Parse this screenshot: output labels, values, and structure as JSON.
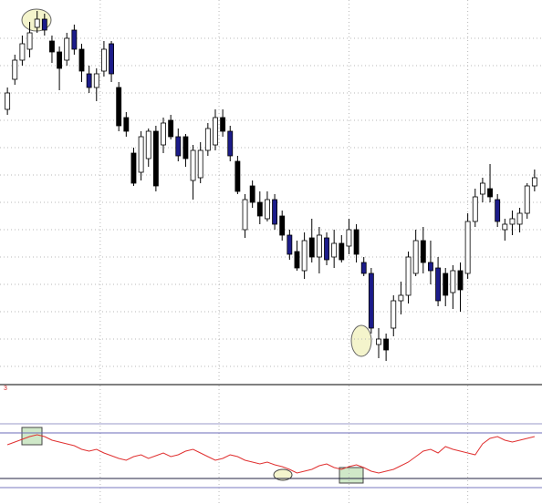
{
  "chart_data": [
    {
      "type": "candlestick",
      "xlim": [
        -1,
        72
      ],
      "xticks": [
        12.5,
        28.5,
        46,
        62
      ],
      "ylim": [
        0,
        140
      ],
      "yticks": [
        6,
        16,
        26,
        36,
        46,
        56,
        66,
        76,
        86,
        96,
        106,
        116,
        126
      ],
      "grid": true,
      "open": [
        100,
        111,
        118,
        122,
        130,
        133,
        125,
        121,
        118,
        129,
        122,
        113,
        108,
        114,
        124,
        108,
        97,
        84,
        77,
        82,
        92,
        87,
        96,
        90,
        90,
        74,
        75,
        85,
        87,
        97,
        92,
        81,
        56,
        72,
        66,
        60,
        67,
        61,
        54,
        48,
        41,
        53,
        46,
        53,
        46,
        51,
        50,
        56,
        44,
        40,
        14,
        16,
        20,
        30,
        32,
        40,
        52,
        44,
        42,
        40,
        33,
        41,
        40,
        59,
        69,
        71,
        67,
        56,
        58,
        58,
        62,
        72
      ],
      "high": [
        108,
        120,
        127,
        132,
        136,
        135,
        127,
        123,
        128,
        131,
        124,
        116,
        115,
        125,
        125,
        110,
        99,
        86,
        92,
        93,
        94,
        97,
        98,
        93,
        91,
        87,
        88,
        95,
        100,
        100,
        94,
        83,
        69,
        74,
        70,
        70,
        69,
        63,
        56,
        52,
        55,
        60,
        57,
        55,
        56,
        54,
        60,
        58,
        46,
        42,
        20,
        18,
        32,
        37,
        48,
        56,
        57,
        52,
        46,
        42,
        43,
        44,
        62,
        71,
        75,
        80,
        69,
        60,
        63,
        64,
        73,
        78
      ],
      "low": [
        98,
        109,
        116,
        119,
        128,
        127,
        117,
        107,
        116,
        120,
        110,
        106,
        103,
        112,
        110,
        92,
        90,
        72,
        74,
        79,
        70,
        84,
        89,
        81,
        79,
        67,
        73,
        83,
        85,
        90,
        81,
        69,
        53,
        64,
        58,
        59,
        56,
        52,
        45,
        41,
        38,
        44,
        40,
        43,
        42,
        44,
        47,
        44,
        39,
        18,
        9,
        8,
        17,
        25,
        29,
        39,
        40,
        36,
        28,
        28,
        27,
        26,
        38,
        57,
        66,
        66,
        57,
        52,
        54,
        55,
        60,
        70
      ],
      "close": [
        106,
        118,
        124,
        128,
        133,
        129,
        121,
        115,
        126,
        122,
        114,
        108,
        113,
        122,
        113,
        94,
        92,
        73,
        90,
        92,
        72,
        95,
        90,
        83,
        82,
        85,
        85,
        93,
        97,
        92,
        83,
        70,
        67,
        66,
        61,
        67,
        58,
        54,
        47,
        42,
        52,
        46,
        54,
        45,
        51,
        45,
        56,
        47,
        40,
        20,
        16,
        12,
        30,
        32,
        46,
        52,
        44,
        41,
        30,
        32,
        41,
        34,
        59,
        68,
        73,
        68,
        59,
        58,
        60,
        62,
        72,
        75
      ],
      "colors": [
        "#ffffff",
        "#ffffff",
        "#ffffff",
        "#ffffff",
        "#ffffff",
        "#1c1c8a",
        "#000000",
        "#000000",
        "#ffffff",
        "#1c1c8a",
        "#000000",
        "#1c1c8a",
        "#ffffff",
        "#ffffff",
        "#1c1c8a",
        "#000000",
        "#000000",
        "#000000",
        "#ffffff",
        "#ffffff",
        "#000000",
        "#ffffff",
        "#000000",
        "#1c1c8a",
        "#000000",
        "#ffffff",
        "#ffffff",
        "#ffffff",
        "#ffffff",
        "#000000",
        "#1c1c8a",
        "#000000",
        "#ffffff",
        "#000000",
        "#000000",
        "#ffffff",
        "#1c1c8a",
        "#000000",
        "#1c1c8a",
        "#000000",
        "#ffffff",
        "#000000",
        "#ffffff",
        "#1c1c8a",
        "#ffffff",
        "#000000",
        "#ffffff",
        "#000000",
        "#1c1c8a",
        "#1c1c8a",
        "#ffffff",
        "#000000",
        "#ffffff",
        "#ffffff",
        "#ffffff",
        "#ffffff",
        "#000000",
        "#1c1c8a",
        "#1c1c8a",
        "#000000",
        "#ffffff",
        "#000000",
        "#ffffff",
        "#ffffff",
        "#ffffff",
        "#000000",
        "#1c1c8a",
        "#ffffff",
        "#ffffff",
        "#ffffff",
        "#ffffff",
        "#ffffff"
      ]
    },
    {
      "type": "line",
      "label": "3",
      "label_color": "#d02020",
      "xlim": [
        -1,
        72
      ],
      "xticks": [
        12.5,
        28.5,
        46,
        62
      ],
      "ylim": [
        0,
        100
      ],
      "levels": [
        80,
        70,
        20,
        10
      ],
      "level_colors": [
        "#9a9ac8",
        "#6b6bb8",
        "#202040",
        "#7a7ac0"
      ],
      "color": "#e03030",
      "values": [
        57,
        60,
        63,
        66,
        68,
        66,
        62,
        60,
        58,
        56,
        52,
        50,
        52,
        48,
        45,
        42,
        40,
        44,
        46,
        42,
        45,
        48,
        44,
        46,
        50,
        52,
        48,
        44,
        40,
        42,
        46,
        44,
        40,
        38,
        36,
        38,
        35,
        33,
        30,
        26,
        28,
        30,
        34,
        36,
        32,
        30,
        33,
        35,
        32,
        28,
        26,
        28,
        30,
        34,
        38,
        44,
        50,
        52,
        48,
        55,
        52,
        50,
        48,
        46,
        58,
        64,
        66,
        62,
        60,
        62,
        64,
        66
      ]
    }
  ]
}
